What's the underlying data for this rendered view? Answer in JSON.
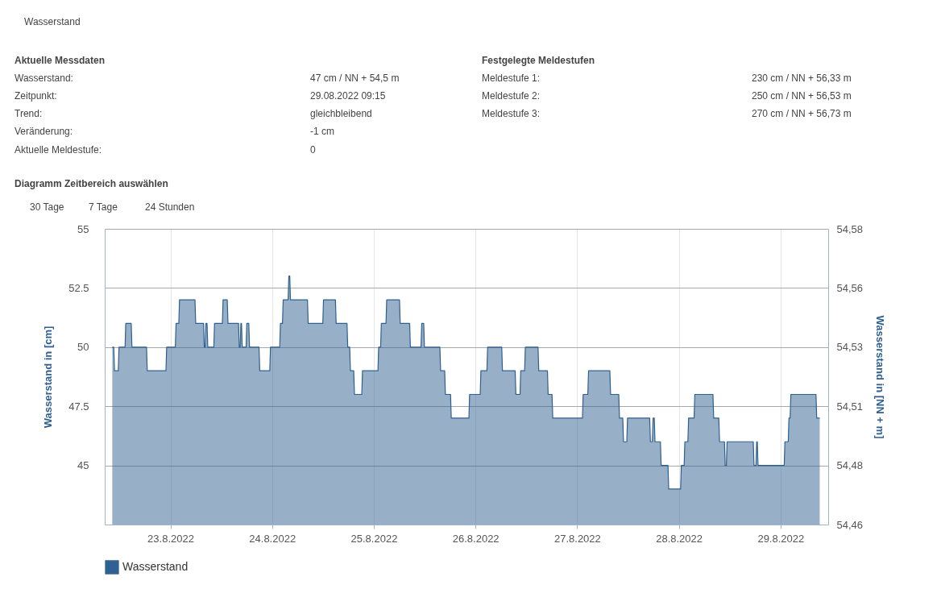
{
  "chart_data": {
    "type": "area",
    "ylabel": "Wasserstand in [cm]",
    "y2label": "Wasserstand in [NN + m]",
    "annotations": [
      "Wasserstand",
      "Aktuelle Messdaten",
      "Wasserstand:",
      "47 cm / NN + 54,5 m",
      "Zeitpunkt:",
      "29.08.2022 09:15",
      "Trend:",
      "gleichbleibend",
      "Veränderung:",
      "-1 cm",
      "Aktuelle Meldestufe:",
      "0",
      "Festgelegte Meldestufen",
      "Meldestufe 1:",
      "230 cm / NN + 56,33 m",
      "Meldestufe 2:",
      "250 cm / NN + 56,53 m",
      "Meldestufe 3:",
      "270 cm / NN + 56,73 m",
      "Diagramm Zeitbereich auswählen",
      "30 Tage",
      "7 Tage",
      "24 Stunden"
    ],
    "x": [
      "2022-08-22T10:17",
      "2022-08-22T10:38",
      "2022-08-22T10:48",
      "2022-08-22T11:42",
      "2022-08-22T11:52",
      "2022-08-22T13:18",
      "2022-08-22T13:28",
      "2022-08-22T14:45",
      "2022-08-22T14:55",
      "2022-08-22T18:22",
      "2022-08-22T18:32",
      "2022-08-22T22:57",
      "2022-08-22T23:07",
      "2022-08-23T01:10",
      "2022-08-23T01:20",
      "2022-08-23T01:59",
      "2022-08-23T02:09",
      "2022-08-23T05:48",
      "2022-08-23T05:58",
      "2022-08-23T07:50",
      "2022-08-23T08:00",
      "2022-08-23T08:13",
      "2022-08-23T08:23",
      "2022-08-23T08:39",
      "2022-08-23T08:49",
      "2022-08-23T10:15",
      "2022-08-23T10:25",
      "2022-08-23T12:16",
      "2022-08-23T12:26",
      "2022-08-23T13:25",
      "2022-08-23T13:35",
      "2022-08-23T16:05",
      "2022-08-23T16:15",
      "2022-08-23T16:28",
      "2022-08-23T16:38",
      "2022-08-23T16:47",
      "2022-08-23T16:57",
      "2022-08-23T17:52",
      "2022-08-23T18:02",
      "2022-08-23T18:30",
      "2022-08-23T18:40",
      "2022-08-23T20:55",
      "2022-08-23T21:05",
      "2022-08-23T23:27",
      "2022-08-23T23:37",
      "2022-08-24T01:48",
      "2022-08-24T01:58",
      "2022-08-24T02:27",
      "2022-08-24T02:37",
      "2022-08-24T03:47",
      "2022-08-24T03:57",
      "2022-08-24T04:10",
      "2022-08-24T04:20",
      "2022-08-24T08:21",
      "2022-08-24T08:31",
      "2022-08-24T11:58",
      "2022-08-24T12:08",
      "2022-08-24T14:57",
      "2022-08-24T15:07",
      "2022-08-24T17:41",
      "2022-08-24T17:51",
      "2022-08-24T18:19",
      "2022-08-24T18:29",
      "2022-08-24T19:16",
      "2022-08-24T19:26",
      "2022-08-24T21:10",
      "2022-08-24T21:20",
      "2022-08-25T00:59",
      "2022-08-25T01:09",
      "2022-08-25T01:37",
      "2022-08-25T01:47",
      "2022-08-25T02:53",
      "2022-08-25T03:03",
      "2022-08-25T06:04",
      "2022-08-25T06:14",
      "2022-08-25T08:28",
      "2022-08-25T08:38",
      "2022-08-25T11:09",
      "2022-08-25T11:19",
      "2022-08-25T11:47",
      "2022-08-25T11:57",
      "2022-08-25T15:36",
      "2022-08-25T15:46",
      "2022-08-25T16:44",
      "2022-08-25T16:54",
      "2022-08-25T18:07",
      "2022-08-25T18:17",
      "2022-08-25T22:27",
      "2022-08-25T22:37",
      "2022-08-26T01:07",
      "2022-08-26T01:17",
      "2022-08-26T02:42",
      "2022-08-26T02:52",
      "2022-08-26T06:12",
      "2022-08-26T06:22",
      "2022-08-26T09:22",
      "2022-08-26T09:32",
      "2022-08-26T10:31",
      "2022-08-26T10:41",
      "2022-08-26T11:36",
      "2022-08-26T11:46",
      "2022-08-26T14:46",
      "2022-08-26T14:56",
      "2022-08-26T16:59",
      "2022-08-26T17:09",
      "2022-08-26T18:04",
      "2022-08-26T18:14",
      "2022-08-27T01:15",
      "2022-08-27T01:25",
      "2022-08-27T02:31",
      "2022-08-27T02:41",
      "2022-08-27T07:43",
      "2022-08-27T07:53",
      "2022-08-27T09:49",
      "2022-08-27T09:59",
      "2022-08-27T10:46",
      "2022-08-27T10:56",
      "2022-08-27T11:43",
      "2022-08-27T11:53",
      "2022-08-27T17:07",
      "2022-08-27T17:17",
      "2022-08-27T17:45",
      "2022-08-27T17:55",
      "2022-08-27T18:12",
      "2022-08-27T18:22",
      "2022-08-27T19:39",
      "2022-08-27T19:49",
      "2022-08-27T21:26",
      "2022-08-27T21:36",
      "2022-08-28T00:25",
      "2022-08-28T00:35",
      "2022-08-28T01:15",
      "2022-08-28T01:25",
      "2022-08-28T02:08",
      "2022-08-28T02:18",
      "2022-08-28T03:36",
      "2022-08-28T03:46",
      "2022-08-28T08:03",
      "2022-08-28T08:13",
      "2022-08-28T09:26",
      "2022-08-28T09:36",
      "2022-08-28T10:46",
      "2022-08-28T10:56",
      "2022-08-28T11:13",
      "2022-08-28T11:23",
      "2022-08-28T17:34",
      "2022-08-28T17:44",
      "2022-08-28T18:12",
      "2022-08-28T18:22",
      "2022-08-28T18:31",
      "2022-08-28T18:41",
      "2022-08-29T00:52",
      "2022-08-29T01:02",
      "2022-08-29T01:49",
      "2022-08-29T01:59",
      "2022-08-29T02:16",
      "2022-08-29T02:26",
      "2022-08-29T08:22",
      "2022-08-29T08:32",
      "2022-08-29T09:15"
    ],
    "series": [
      {
        "name": "Wasserstand",
        "color": "#2f6090",
        "values": [
          50,
          50,
          49,
          49,
          50,
          50,
          51,
          51,
          50,
          50,
          49,
          49,
          50,
          50,
          51,
          51,
          52,
          52,
          51,
          51,
          50,
          50,
          51,
          51,
          50,
          50,
          51,
          51,
          52,
          52,
          51,
          51,
          50,
          50,
          51,
          51,
          50,
          50,
          51,
          51,
          50,
          50,
          49,
          49,
          50,
          50,
          51,
          51,
          52,
          52,
          53,
          53,
          52,
          52,
          51,
          51,
          52,
          52,
          51,
          51,
          50,
          50,
          49,
          49,
          48,
          48,
          49,
          49,
          50,
          50,
          51,
          51,
          52,
          52,
          51,
          51,
          50,
          50,
          51,
          51,
          50,
          50,
          49,
          49,
          48,
          48,
          47,
          47,
          48,
          48,
          49,
          49,
          50,
          50,
          49,
          49,
          48,
          48,
          49,
          49,
          50,
          50,
          49,
          49,
          48,
          48,
          47,
          47,
          48,
          48,
          49,
          49,
          48,
          48,
          47,
          47,
          46,
          46,
          47,
          47,
          46,
          46,
          47,
          47,
          46,
          46,
          45,
          45,
          44,
          44,
          45,
          45,
          46,
          46,
          47,
          47,
          48,
          48,
          47,
          47,
          46,
          46,
          45,
          45,
          46,
          46,
          45,
          45,
          46,
          46,
          45,
          45,
          46,
          46,
          47,
          47,
          48,
          48,
          47,
          47
        ]
      }
    ],
    "xlim": [
      "2022-08-22T08:30",
      "2022-08-29T11:15"
    ],
    "xticks": [
      {
        "value": "2022-08-23",
        "label": "23.8.2022"
      },
      {
        "value": "2022-08-24",
        "label": "24.8.2022"
      },
      {
        "value": "2022-08-25",
        "label": "25.8.2022"
      },
      {
        "value": "2022-08-26",
        "label": "26.8.2022"
      },
      {
        "value": "2022-08-27",
        "label": "27.8.2022"
      },
      {
        "value": "2022-08-28",
        "label": "28.8.2022"
      },
      {
        "value": "2022-08-29",
        "label": "29.8.2022"
      }
    ],
    "ylim": [
      42.5,
      55
    ],
    "yticks": [
      45,
      {
        "value": 47.5,
        "label": "47.5"
      },
      50,
      {
        "value": 52.5,
        "label": "52.5"
      },
      55
    ],
    "y2lim": [
      54.455,
      54.58
    ],
    "y2ticks": [
      {
        "value": 54.455,
        "label": "54,46"
      },
      {
        "value": 54.48,
        "label": "54,48"
      },
      {
        "value": 54.505,
        "label": "54,51"
      },
      {
        "value": 54.53,
        "label": "54,53"
      },
      {
        "value": 54.555,
        "label": "54,56"
      },
      {
        "value": 54.58,
        "label": "54,58"
      }
    ],
    "grid": true,
    "legend": "bottom"
  }
}
